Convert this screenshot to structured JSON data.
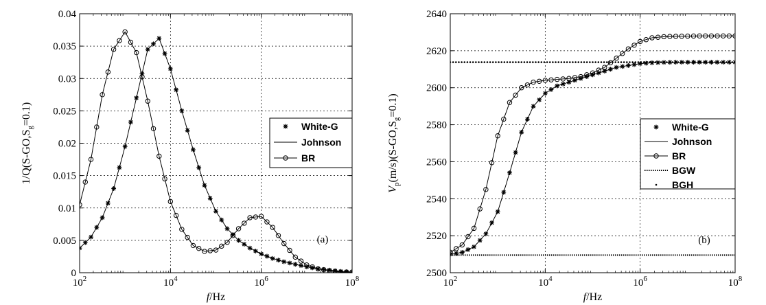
{
  "figure": {
    "panels": [
      {
        "panel_label": "(a)",
        "xlabel_italic": "f",
        "xlabel_rest": "/Hz",
        "ylabel": "1/Q(S-GO,S",
        "ylabel_sub": "g",
        "ylabel_end": "=0.1)",
        "x_ticks": [
          {
            "base": "10",
            "exp": "2"
          },
          {
            "base": "10",
            "exp": "4"
          },
          {
            "base": "10",
            "exp": "6"
          },
          {
            "base": "10",
            "exp": "8"
          }
        ],
        "y_ticks": [
          "0",
          "0.005",
          "0.01",
          "0.015",
          "0.02",
          "0.025",
          "0.03",
          "0.035",
          "0.04"
        ],
        "legend": [
          "White-G",
          "Johnson",
          "BR"
        ]
      },
      {
        "panel_label": "(b)",
        "xlabel_italic": "f",
        "xlabel_rest": "/Hz",
        "ylabel_italic": "V",
        "ylabel_sub1": "p",
        "ylabel": "(m/s)(S-GO,S",
        "ylabel_sub": "g",
        "ylabel_end": "=0.1)",
        "x_ticks": [
          {
            "base": "10",
            "exp": "2"
          },
          {
            "base": "10",
            "exp": "4"
          },
          {
            "base": "10",
            "exp": "6"
          },
          {
            "base": "10",
            "exp": "8"
          }
        ],
        "y_ticks": [
          "2500",
          "2520",
          "2540",
          "2560",
          "2580",
          "2600",
          "2620",
          "2640"
        ],
        "legend": [
          "White-G",
          "Johnson",
          "BR",
          "BGW",
          "BGH"
        ]
      }
    ]
  },
  "chart_data": [
    {
      "type": "line",
      "title": "",
      "panel": "(a)",
      "xlabel": "f/Hz",
      "ylabel": "1/Q(S-GO,Sg=0.1)",
      "xscale": "log",
      "xlim": [
        100,
        100000000
      ],
      "ylim": [
        0,
        0.04
      ],
      "grid": true,
      "legend_position": "right",
      "log10_f": [
        2,
        2.25,
        2.5,
        2.75,
        3,
        3.25,
        3.5,
        3.75,
        4,
        4.25,
        4.5,
        4.75,
        5,
        5.25,
        5.5,
        5.75,
        6,
        6.25,
        6.5,
        6.75,
        7,
        7.25,
        7.5,
        7.75,
        8
      ],
      "series": [
        {
          "name": "White-G",
          "marker": "star",
          "values": [
            0.0038,
            0.0055,
            0.0085,
            0.013,
            0.0195,
            0.027,
            0.0345,
            0.0362,
            0.0315,
            0.025,
            0.019,
            0.0135,
            0.0095,
            0.0068,
            0.005,
            0.0038,
            0.0029,
            0.0022,
            0.0017,
            0.0013,
            0.0009,
            0.0006,
            0.0004,
            0.0002,
            0.0001
          ]
        },
        {
          "name": "Johnson",
          "marker": "line",
          "values": [
            0.0038,
            0.0055,
            0.0085,
            0.013,
            0.0195,
            0.027,
            0.0345,
            0.0362,
            0.0315,
            0.025,
            0.019,
            0.0135,
            0.0095,
            0.0068,
            0.005,
            0.0038,
            0.0029,
            0.0022,
            0.0017,
            0.0013,
            0.0009,
            0.0006,
            0.0004,
            0.0002,
            0.0001
          ]
        },
        {
          "name": "BR",
          "marker": "circle",
          "values": [
            0.0105,
            0.0175,
            0.0275,
            0.0345,
            0.0372,
            0.034,
            0.0265,
            0.018,
            0.011,
            0.0067,
            0.0042,
            0.0033,
            0.0035,
            0.0047,
            0.0068,
            0.0085,
            0.0087,
            0.007,
            0.0045,
            0.0024,
            0.0012,
            0.0006,
            0.0003,
            0.0001,
            0.0001
          ]
        }
      ]
    },
    {
      "type": "line",
      "title": "",
      "panel": "(b)",
      "xlabel": "f/Hz",
      "ylabel": "Vp(m/s)(S-GO,Sg=0.1)",
      "xscale": "log",
      "xlim": [
        100,
        100000000
      ],
      "ylim": [
        2500,
        2640
      ],
      "grid": true,
      "legend_position": "right",
      "log10_f": [
        2,
        2.25,
        2.5,
        2.75,
        3,
        3.25,
        3.5,
        3.75,
        4,
        4.25,
        4.5,
        4.75,
        5,
        5.25,
        5.5,
        5.75,
        6,
        6.25,
        6.5,
        6.75,
        7,
        7.25,
        7.5,
        7.75,
        8
      ],
      "series": [
        {
          "name": "White-G",
          "marker": "star",
          "values": [
            2510,
            2511,
            2514,
            2521,
            2533,
            2554,
            2576,
            2590,
            2597,
            2601,
            2603,
            2605,
            2607,
            2609,
            2611,
            2612,
            2613,
            2613.5,
            2613.7,
            2613.8,
            2613.8,
            2613.8,
            2613.8,
            2613.8,
            2613.8
          ]
        },
        {
          "name": "Johnson",
          "marker": "line",
          "values": [
            2510,
            2511,
            2514,
            2521,
            2533,
            2554,
            2576,
            2590,
            2597,
            2601,
            2603,
            2605,
            2607,
            2609,
            2611,
            2612,
            2613,
            2613.5,
            2613.7,
            2613.8,
            2613.8,
            2613.8,
            2613.8,
            2613.8,
            2613.8
          ]
        },
        {
          "name": "BR",
          "marker": "circle",
          "values": [
            2511,
            2515,
            2524,
            2545,
            2574,
            2592,
            2600,
            2603,
            2604,
            2604.5,
            2605,
            2606,
            2608,
            2611,
            2616,
            2621,
            2625,
            2627,
            2627.6,
            2627.8,
            2627.9,
            2628,
            2628,
            2628,
            2628
          ]
        },
        {
          "name": "BGW",
          "marker": "dotted",
          "values": [
            2509.5,
            2509.5,
            2509.5,
            2509.5,
            2509.5,
            2509.5,
            2509.5,
            2509.5,
            2509.5,
            2509.5,
            2509.5,
            2509.5,
            2509.5,
            2509.5,
            2509.5,
            2509.5,
            2509.5,
            2509.5,
            2509.5,
            2509.5,
            2509.5,
            2509.5,
            2509.5,
            2509.5,
            2509.5
          ]
        },
        {
          "name": "BGH",
          "marker": "dot",
          "values": [
            2613.8,
            2613.8,
            2613.8,
            2613.8,
            2613.8,
            2613.8,
            2613.8,
            2613.8,
            2613.8,
            2613.8,
            2613.8,
            2613.8,
            2613.8,
            2613.8,
            2613.8,
            2613.8,
            2613.8,
            2613.8,
            2613.8,
            2613.8,
            2613.8,
            2613.8,
            2613.8,
            2613.8,
            2613.8
          ]
        }
      ]
    }
  ]
}
